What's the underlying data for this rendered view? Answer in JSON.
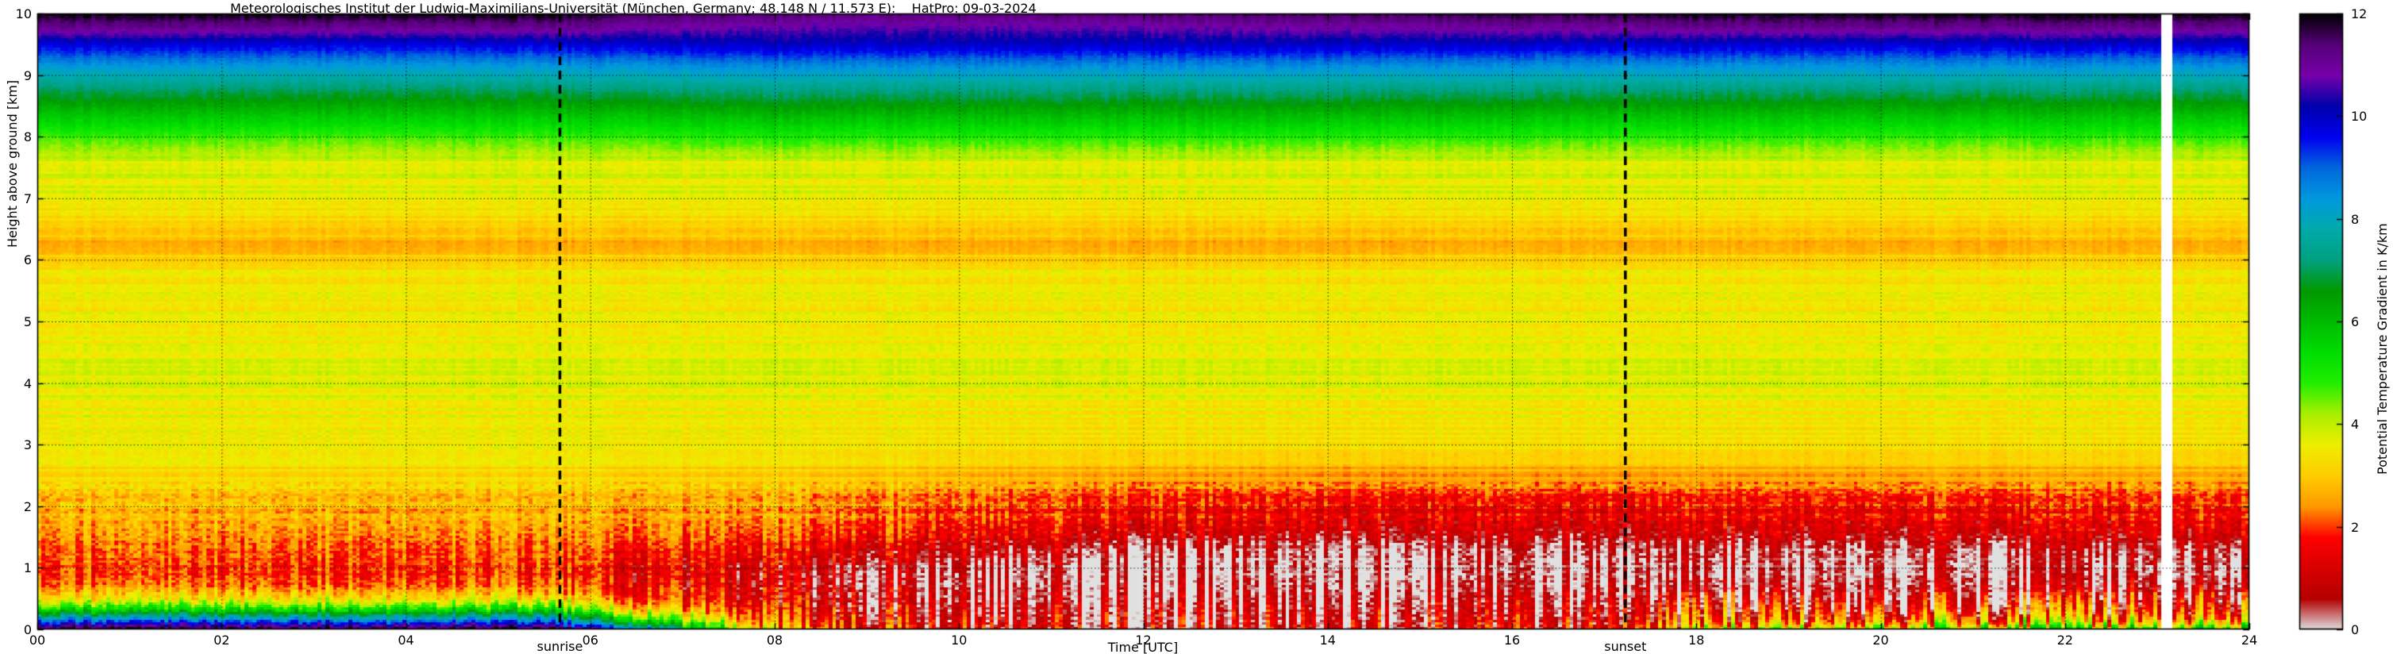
{
  "chart_data": {
    "type": "heatmap",
    "title": "Meteorologisches Institut der Ludwig-Maximilians-Universität (München, Germany; 48.148 N / 11.573 E):    HatPro: 09-03-2024",
    "xlabel": "Time [UTC]",
    "ylabel": "Height above ground [km]",
    "colorbar_label": "Potential Temperature Gradient in K/km",
    "xlim": [
      0,
      24
    ],
    "ylim": [
      0,
      10
    ],
    "clim": [
      0,
      12
    ],
    "grid": "dotted black, vertical every 2 h, horizontal every 1 km",
    "legend_position": "colorbar right",
    "x_ticks": {
      "values": [
        0,
        2,
        4,
        6,
        8,
        10,
        12,
        14,
        16,
        18,
        20,
        22,
        24
      ],
      "labels": [
        "00",
        "02",
        "04",
        "06",
        "08",
        "10",
        "12",
        "14",
        "16",
        "18",
        "20",
        "22",
        "24"
      ]
    },
    "y_ticks": {
      "values": [
        0,
        1,
        2,
        3,
        4,
        5,
        6,
        7,
        8,
        9,
        10
      ],
      "labels": [
        "0",
        "1",
        "2",
        "3",
        "4",
        "5",
        "6",
        "7",
        "8",
        "9",
        "10"
      ]
    },
    "cb_ticks": {
      "values": [
        0,
        2,
        4,
        6,
        8,
        10,
        12
      ],
      "labels": [
        "0",
        "2",
        "4",
        "6",
        "8",
        "10",
        "12"
      ]
    },
    "annotations": [
      {
        "label": "sunrise",
        "x": 5.67,
        "style": "black dashed vertical line"
      },
      {
        "label": "sunset",
        "x": 17.23,
        "style": "black dashed vertical line"
      }
    ],
    "data_gap": {
      "x_start": 23.06,
      "x_end": 23.18,
      "color": "#ffffff"
    },
    "colormap": {
      "name": "spectral-reversed (white-red-yellow-green-blue-purple-black)",
      "stops": [
        [
          0.0,
          "#e0e0e0"
        ],
        [
          0.6,
          "#b40000"
        ],
        [
          1.2,
          "#d80000"
        ],
        [
          1.8,
          "#ff0000"
        ],
        [
          2.4,
          "#ff9900"
        ],
        [
          3.0,
          "#ffcc00"
        ],
        [
          3.6,
          "#eeee00"
        ],
        [
          4.2,
          "#aaee00"
        ],
        [
          4.8,
          "#22ee00"
        ],
        [
          5.4,
          "#00dd00"
        ],
        [
          6.0,
          "#00bb00"
        ],
        [
          6.6,
          "#009900"
        ],
        [
          7.2,
          "#00a080"
        ],
        [
          7.8,
          "#00aaaa"
        ],
        [
          8.4,
          "#0099dd"
        ],
        [
          9.0,
          "#0066dd"
        ],
        [
          9.6,
          "#0000ee"
        ],
        [
          10.2,
          "#0000aa"
        ],
        [
          10.8,
          "#7700aa"
        ],
        [
          11.4,
          "#550077"
        ],
        [
          12.0,
          "#000000"
        ]
      ]
    },
    "heights_km": [
      0,
      0.05,
      0.1,
      0.15,
      0.2,
      0.3,
      0.4,
      0.5,
      0.7,
      0.9,
      1.1,
      1.3,
      1.6,
      2.0,
      2.5,
      3.0,
      4.0,
      5.0,
      5.9,
      6.25,
      6.6,
      7.0,
      7.6,
      7.95,
      8.4,
      8.8,
      9.15,
      9.5,
      9.75,
      10
    ],
    "profiles_K_per_km": [
      {
        "t": 0.0,
        "v": [
          11.8,
          11.0,
          9.8,
          8.8,
          7.6,
          5.8,
          4.4,
          3.4,
          2.3,
          1.9,
          2.0,
          2.2,
          2.5,
          2.8,
          3.2,
          3.5,
          3.7,
          3.6,
          3.4,
          2.7,
          3.1,
          3.7,
          3.8,
          4.6,
          6.0,
          7.2,
          8.4,
          9.8,
          11.0,
          12.0
        ]
      },
      {
        "t": 5.5,
        "v": [
          11.8,
          11.0,
          9.8,
          8.8,
          7.6,
          5.8,
          4.4,
          3.4,
          2.3,
          1.9,
          2.0,
          2.2,
          2.5,
          2.8,
          3.2,
          3.5,
          3.7,
          3.6,
          3.4,
          2.7,
          3.1,
          3.7,
          3.8,
          4.6,
          6.0,
          7.2,
          8.4,
          9.8,
          11.0,
          12.0
        ]
      },
      {
        "t": 6.5,
        "v": [
          9.0,
          7.8,
          6.6,
          5.6,
          4.6,
          3.4,
          2.6,
          2.1,
          1.6,
          1.4,
          1.6,
          1.9,
          2.3,
          2.7,
          3.1,
          3.5,
          3.7,
          3.6,
          3.4,
          2.7,
          3.1,
          3.7,
          3.8,
          4.7,
          6.1,
          7.3,
          8.5,
          9.9,
          10.8,
          11.6
        ]
      },
      {
        "t": 8.0,
        "v": [
          2.6,
          2.3,
          2.1,
          1.9,
          1.7,
          1.4,
          1.2,
          1.1,
          1.0,
          0.9,
          1.1,
          1.5,
          2.0,
          2.5,
          3.0,
          3.4,
          3.7,
          3.6,
          3.4,
          2.7,
          3.1,
          3.7,
          3.8,
          4.8,
          6.2,
          7.4,
          8.6,
          10.0,
          10.6,
          11.4
        ]
      },
      {
        "t": 9.5,
        "v": [
          1.5,
          1.4,
          1.3,
          1.2,
          1.1,
          0.95,
          0.85,
          0.8,
          0.65,
          0.5,
          0.8,
          1.2,
          1.8,
          2.3,
          2.9,
          3.4,
          3.7,
          3.6,
          3.4,
          2.7,
          3.1,
          3.7,
          3.8,
          4.8,
          6.2,
          7.4,
          8.6,
          10.0,
          10.6,
          11.4
        ]
      },
      {
        "t": 10.5,
        "v": [
          1.1,
          1.05,
          1.0,
          0.95,
          0.9,
          0.8,
          0.7,
          0.6,
          0.4,
          0.25,
          0.4,
          1.0,
          1.5,
          2.1,
          2.7,
          3.3,
          3.7,
          3.6,
          3.4,
          2.7,
          3.1,
          3.7,
          3.8,
          4.8,
          6.2,
          7.4,
          8.6,
          10.0,
          10.6,
          11.4
        ]
      },
      {
        "t": 12.0,
        "v": [
          1.0,
          0.95,
          0.9,
          0.85,
          0.8,
          0.7,
          0.6,
          0.5,
          0.3,
          0.12,
          0.15,
          0.5,
          1.2,
          1.8,
          2.6,
          3.3,
          3.7,
          3.6,
          3.4,
          2.7,
          3.1,
          3.7,
          3.8,
          4.8,
          6.2,
          7.4,
          8.6,
          10.0,
          10.7,
          11.5
        ]
      },
      {
        "t": 14.0,
        "v": [
          1.0,
          0.95,
          0.9,
          0.85,
          0.8,
          0.7,
          0.6,
          0.5,
          0.3,
          0.1,
          0.08,
          0.3,
          1.0,
          1.6,
          2.5,
          3.3,
          3.7,
          3.6,
          3.4,
          2.7,
          3.1,
          3.7,
          3.8,
          4.8,
          6.2,
          7.4,
          8.6,
          10.0,
          10.8,
          11.6
        ]
      },
      {
        "t": 17.0,
        "v": [
          1.3,
          1.2,
          1.1,
          1.0,
          0.9,
          0.8,
          0.7,
          0.55,
          0.3,
          0.1,
          0.08,
          0.3,
          0.9,
          1.5,
          2.5,
          3.3,
          3.7,
          3.6,
          3.4,
          2.7,
          3.1,
          3.7,
          3.8,
          4.7,
          6.1,
          7.3,
          8.5,
          9.9,
          10.9,
          11.8
        ]
      },
      {
        "t": 18.5,
        "v": [
          3.4,
          2.8,
          2.3,
          1.9,
          1.6,
          1.2,
          0.9,
          0.7,
          0.4,
          0.15,
          0.12,
          0.35,
          1.0,
          1.6,
          2.5,
          3.3,
          3.7,
          3.6,
          3.4,
          2.7,
          3.1,
          3.7,
          3.8,
          4.7,
          6.1,
          7.3,
          8.5,
          9.9,
          11.0,
          11.9
        ]
      },
      {
        "t": 21.0,
        "v": [
          4.6,
          3.8,
          3.0,
          2.5,
          2.1,
          1.6,
          1.2,
          0.9,
          0.55,
          0.25,
          0.2,
          0.5,
          1.1,
          1.7,
          2.6,
          3.3,
          3.7,
          3.6,
          3.4,
          2.7,
          3.1,
          3.7,
          3.8,
          4.7,
          6.1,
          7.3,
          8.5,
          9.9,
          11.0,
          12.0
        ]
      },
      {
        "t": 24.0,
        "v": [
          5.2,
          4.2,
          3.4,
          2.8,
          2.3,
          1.8,
          1.4,
          1.1,
          0.7,
          0.35,
          0.25,
          0.6,
          1.2,
          1.8,
          2.6,
          3.3,
          3.7,
          3.6,
          3.4,
          2.7,
          3.1,
          3.7,
          3.8,
          4.7,
          6.1,
          7.3,
          8.5,
          9.9,
          11.0,
          12.0
        ]
      }
    ]
  }
}
